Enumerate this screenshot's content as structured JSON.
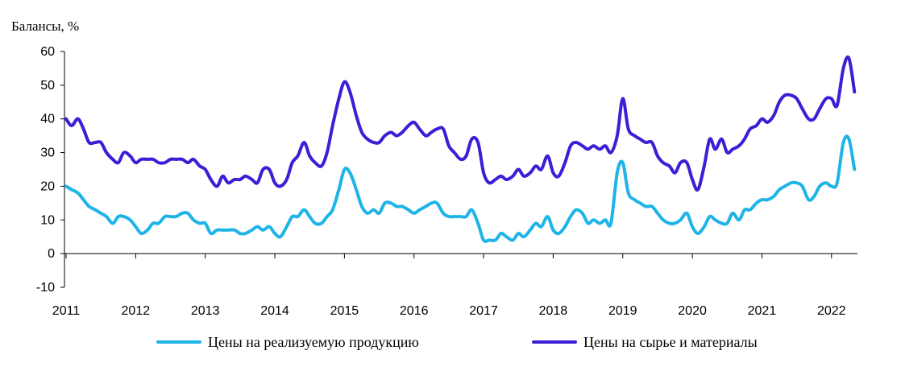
{
  "chart_data": {
    "type": "line",
    "title": "",
    "ylabel": "Балансы, %",
    "xlabel": "",
    "ylim": [
      -10,
      60
    ],
    "yticks": [
      -10,
      0,
      10,
      20,
      30,
      40,
      50,
      60
    ],
    "xlim": [
      2011.0,
      2022.35
    ],
    "xticks": [
      "2011",
      "2012",
      "2013",
      "2014",
      "2015",
      "2016",
      "2017",
      "2018",
      "2019",
      "2020",
      "2021",
      "2022"
    ],
    "grid": false,
    "legend_position": "bottom",
    "series": [
      {
        "name": "Цены на реализуемую продукцию",
        "color": "#1fb4e8",
        "points": [
          [
            2011.0,
            20
          ],
          [
            2011.08,
            19
          ],
          [
            2011.17,
            18
          ],
          [
            2011.25,
            16
          ],
          [
            2011.33,
            14
          ],
          [
            2011.42,
            13
          ],
          [
            2011.5,
            12
          ],
          [
            2011.58,
            11
          ],
          [
            2011.67,
            9
          ],
          [
            2011.75,
            11
          ],
          [
            2011.83,
            11
          ],
          [
            2011.92,
            10
          ],
          [
            2012.0,
            8
          ],
          [
            2012.08,
            6
          ],
          [
            2012.17,
            7
          ],
          [
            2012.25,
            9
          ],
          [
            2012.33,
            9
          ],
          [
            2012.42,
            11
          ],
          [
            2012.5,
            11
          ],
          [
            2012.58,
            11
          ],
          [
            2012.67,
            12
          ],
          [
            2012.75,
            12
          ],
          [
            2012.83,
            10
          ],
          [
            2012.92,
            9
          ],
          [
            2013.0,
            9
          ],
          [
            2013.08,
            6
          ],
          [
            2013.17,
            7
          ],
          [
            2013.25,
            7
          ],
          [
            2013.33,
            7
          ],
          [
            2013.42,
            7
          ],
          [
            2013.5,
            6
          ],
          [
            2013.58,
            6
          ],
          [
            2013.67,
            7
          ],
          [
            2013.75,
            8
          ],
          [
            2013.83,
            7
          ],
          [
            2013.92,
            8
          ],
          [
            2014.0,
            6
          ],
          [
            2014.08,
            5
          ],
          [
            2014.17,
            8
          ],
          [
            2014.25,
            11
          ],
          [
            2014.33,
            11
          ],
          [
            2014.42,
            13
          ],
          [
            2014.5,
            11
          ],
          [
            2014.58,
            9
          ],
          [
            2014.67,
            9
          ],
          [
            2014.75,
            11
          ],
          [
            2014.83,
            13
          ],
          [
            2014.92,
            19
          ],
          [
            2015.0,
            25
          ],
          [
            2015.08,
            24
          ],
          [
            2015.17,
            19
          ],
          [
            2015.25,
            14
          ],
          [
            2015.33,
            12
          ],
          [
            2015.42,
            13
          ],
          [
            2015.5,
            12
          ],
          [
            2015.58,
            15
          ],
          [
            2015.67,
            15
          ],
          [
            2015.75,
            14
          ],
          [
            2015.83,
            14
          ],
          [
            2015.92,
            13
          ],
          [
            2016.0,
            12
          ],
          [
            2016.08,
            13
          ],
          [
            2016.17,
            14
          ],
          [
            2016.25,
            15
          ],
          [
            2016.33,
            15
          ],
          [
            2016.42,
            12
          ],
          [
            2016.5,
            11
          ],
          [
            2016.58,
            11
          ],
          [
            2016.67,
            11
          ],
          [
            2016.75,
            11
          ],
          [
            2016.83,
            13
          ],
          [
            2016.92,
            9
          ],
          [
            2017.0,
            4
          ],
          [
            2017.08,
            4
          ],
          [
            2017.17,
            4
          ],
          [
            2017.25,
            6
          ],
          [
            2017.33,
            5
          ],
          [
            2017.42,
            4
          ],
          [
            2017.5,
            6
          ],
          [
            2017.58,
            5
          ],
          [
            2017.67,
            7
          ],
          [
            2017.75,
            9
          ],
          [
            2017.83,
            8
          ],
          [
            2017.92,
            11
          ],
          [
            2018.0,
            7
          ],
          [
            2018.08,
            6
          ],
          [
            2018.17,
            8
          ],
          [
            2018.25,
            11
          ],
          [
            2018.33,
            13
          ],
          [
            2018.42,
            12
          ],
          [
            2018.5,
            9
          ],
          [
            2018.58,
            10
          ],
          [
            2018.67,
            9
          ],
          [
            2018.75,
            10
          ],
          [
            2018.83,
            9
          ],
          [
            2018.92,
            24
          ],
          [
            2019.0,
            27
          ],
          [
            2019.08,
            18
          ],
          [
            2019.17,
            16
          ],
          [
            2019.25,
            15
          ],
          [
            2019.33,
            14
          ],
          [
            2019.42,
            14
          ],
          [
            2019.5,
            12
          ],
          [
            2019.58,
            10
          ],
          [
            2019.67,
            9
          ],
          [
            2019.75,
            9
          ],
          [
            2019.83,
            10
          ],
          [
            2019.92,
            12
          ],
          [
            2020.0,
            8
          ],
          [
            2020.08,
            6
          ],
          [
            2020.17,
            8
          ],
          [
            2020.25,
            11
          ],
          [
            2020.33,
            10
          ],
          [
            2020.42,
            9
          ],
          [
            2020.5,
            9
          ],
          [
            2020.58,
            12
          ],
          [
            2020.67,
            10
          ],
          [
            2020.75,
            13
          ],
          [
            2020.83,
            13
          ],
          [
            2020.92,
            15
          ],
          [
            2021.0,
            16
          ],
          [
            2021.08,
            16
          ],
          [
            2021.17,
            17
          ],
          [
            2021.25,
            19
          ],
          [
            2021.33,
            20
          ],
          [
            2021.42,
            21
          ],
          [
            2021.5,
            21
          ],
          [
            2021.58,
            20
          ],
          [
            2021.67,
            16
          ],
          [
            2021.75,
            17
          ],
          [
            2021.83,
            20
          ],
          [
            2021.92,
            21
          ],
          [
            2022.0,
            20
          ],
          [
            2022.08,
            21
          ],
          [
            2022.17,
            33
          ],
          [
            2022.25,
            34
          ],
          [
            2022.33,
            25
          ]
        ]
      },
      {
        "name": "Цены на сырье и материалы",
        "color": "#3a1fd6",
        "points": [
          [
            2011.0,
            40
          ],
          [
            2011.08,
            38
          ],
          [
            2011.17,
            40
          ],
          [
            2011.25,
            37
          ],
          [
            2011.33,
            33
          ],
          [
            2011.42,
            33
          ],
          [
            2011.5,
            33
          ],
          [
            2011.58,
            30
          ],
          [
            2011.67,
            28
          ],
          [
            2011.75,
            27
          ],
          [
            2011.83,
            30
          ],
          [
            2011.92,
            29
          ],
          [
            2012.0,
            27
          ],
          [
            2012.08,
            28
          ],
          [
            2012.17,
            28
          ],
          [
            2012.25,
            28
          ],
          [
            2012.33,
            27
          ],
          [
            2012.42,
            27
          ],
          [
            2012.5,
            28
          ],
          [
            2012.58,
            28
          ],
          [
            2012.67,
            28
          ],
          [
            2012.75,
            27
          ],
          [
            2012.83,
            28
          ],
          [
            2012.92,
            26
          ],
          [
            2013.0,
            25
          ],
          [
            2013.08,
            22
          ],
          [
            2013.17,
            20
          ],
          [
            2013.25,
            23
          ],
          [
            2013.33,
            21
          ],
          [
            2013.42,
            22
          ],
          [
            2013.5,
            22
          ],
          [
            2013.58,
            23
          ],
          [
            2013.67,
            22
          ],
          [
            2013.75,
            21
          ],
          [
            2013.83,
            25
          ],
          [
            2013.92,
            25
          ],
          [
            2014.0,
            21
          ],
          [
            2014.08,
            20
          ],
          [
            2014.17,
            22
          ],
          [
            2014.25,
            27
          ],
          [
            2014.33,
            29
          ],
          [
            2014.42,
            33
          ],
          [
            2014.5,
            29
          ],
          [
            2014.58,
            27
          ],
          [
            2014.67,
            26
          ],
          [
            2014.75,
            30
          ],
          [
            2014.83,
            38
          ],
          [
            2014.92,
            46
          ],
          [
            2015.0,
            51
          ],
          [
            2015.08,
            48
          ],
          [
            2015.17,
            41
          ],
          [
            2015.25,
            36
          ],
          [
            2015.33,
            34
          ],
          [
            2015.42,
            33
          ],
          [
            2015.5,
            33
          ],
          [
            2015.58,
            35
          ],
          [
            2015.67,
            36
          ],
          [
            2015.75,
            35
          ],
          [
            2015.83,
            36
          ],
          [
            2015.92,
            38
          ],
          [
            2016.0,
            39
          ],
          [
            2016.08,
            37
          ],
          [
            2016.17,
            35
          ],
          [
            2016.25,
            36
          ],
          [
            2016.33,
            37
          ],
          [
            2016.42,
            37
          ],
          [
            2016.5,
            32
          ],
          [
            2016.58,
            30
          ],
          [
            2016.67,
            28
          ],
          [
            2016.75,
            29
          ],
          [
            2016.83,
            34
          ],
          [
            2016.92,
            33
          ],
          [
            2017.0,
            24
          ],
          [
            2017.08,
            21
          ],
          [
            2017.17,
            22
          ],
          [
            2017.25,
            23
          ],
          [
            2017.33,
            22
          ],
          [
            2017.42,
            23
          ],
          [
            2017.5,
            25
          ],
          [
            2017.58,
            23
          ],
          [
            2017.67,
            24
          ],
          [
            2017.75,
            26
          ],
          [
            2017.83,
            25
          ],
          [
            2017.92,
            29
          ],
          [
            2018.0,
            24
          ],
          [
            2018.08,
            23
          ],
          [
            2018.17,
            27
          ],
          [
            2018.25,
            32
          ],
          [
            2018.33,
            33
          ],
          [
            2018.42,
            32
          ],
          [
            2018.5,
            31
          ],
          [
            2018.58,
            32
          ],
          [
            2018.67,
            31
          ],
          [
            2018.75,
            32
          ],
          [
            2018.83,
            30
          ],
          [
            2018.92,
            35
          ],
          [
            2019.0,
            46
          ],
          [
            2019.08,
            37
          ],
          [
            2019.17,
            35
          ],
          [
            2019.25,
            34
          ],
          [
            2019.33,
            33
          ],
          [
            2019.42,
            33
          ],
          [
            2019.5,
            29
          ],
          [
            2019.58,
            27
          ],
          [
            2019.67,
            26
          ],
          [
            2019.75,
            24
          ],
          [
            2019.83,
            27
          ],
          [
            2019.92,
            27
          ],
          [
            2020.0,
            22
          ],
          [
            2020.08,
            19
          ],
          [
            2020.17,
            26
          ],
          [
            2020.25,
            34
          ],
          [
            2020.33,
            31
          ],
          [
            2020.42,
            34
          ],
          [
            2020.5,
            30
          ],
          [
            2020.58,
            31
          ],
          [
            2020.67,
            32
          ],
          [
            2020.75,
            34
          ],
          [
            2020.83,
            37
          ],
          [
            2020.92,
            38
          ],
          [
            2021.0,
            40
          ],
          [
            2021.08,
            39
          ],
          [
            2021.17,
            41
          ],
          [
            2021.25,
            45
          ],
          [
            2021.33,
            47
          ],
          [
            2021.42,
            47
          ],
          [
            2021.5,
            46
          ],
          [
            2021.58,
            43
          ],
          [
            2021.67,
            40
          ],
          [
            2021.75,
            40
          ],
          [
            2021.83,
            43
          ],
          [
            2021.92,
            46
          ],
          [
            2022.0,
            46
          ],
          [
            2022.08,
            44
          ],
          [
            2022.17,
            55
          ],
          [
            2022.25,
            58
          ],
          [
            2022.33,
            48
          ]
        ]
      }
    ]
  }
}
